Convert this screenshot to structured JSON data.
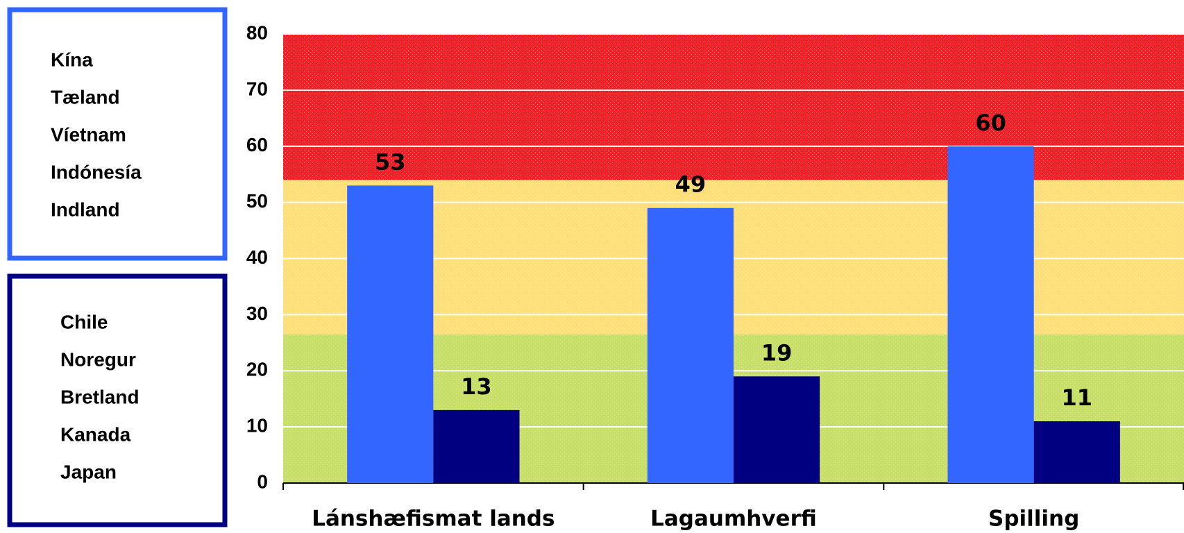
{
  "chart_data": {
    "type": "bar",
    "categories": [
      "Lánshæfismat lands",
      "Lagaumhverfi",
      "Spilling"
    ],
    "series": [
      {
        "members": [
          "Kína",
          "Tæland",
          "Víetnam",
          "Indónesía",
          "Indland"
        ],
        "color": "#3366ff",
        "values": [
          53,
          49,
          60
        ]
      },
      {
        "members": [
          "Chile",
          "Noregur",
          "Bretland",
          "Kanada",
          "Japan"
        ],
        "color": "#000080",
        "values": [
          13,
          19,
          11
        ]
      }
    ],
    "ylim": [
      0,
      80
    ],
    "yticks": [
      0,
      10,
      20,
      30,
      40,
      50,
      60,
      70,
      80
    ],
    "grid": true,
    "bands": [
      {
        "from": 0,
        "to": 26.5,
        "color": "#c8e06a"
      },
      {
        "from": 26.5,
        "to": 54,
        "color": "#fde07a"
      },
      {
        "from": 54,
        "to": 80,
        "color": "#f0232b"
      }
    ]
  }
}
